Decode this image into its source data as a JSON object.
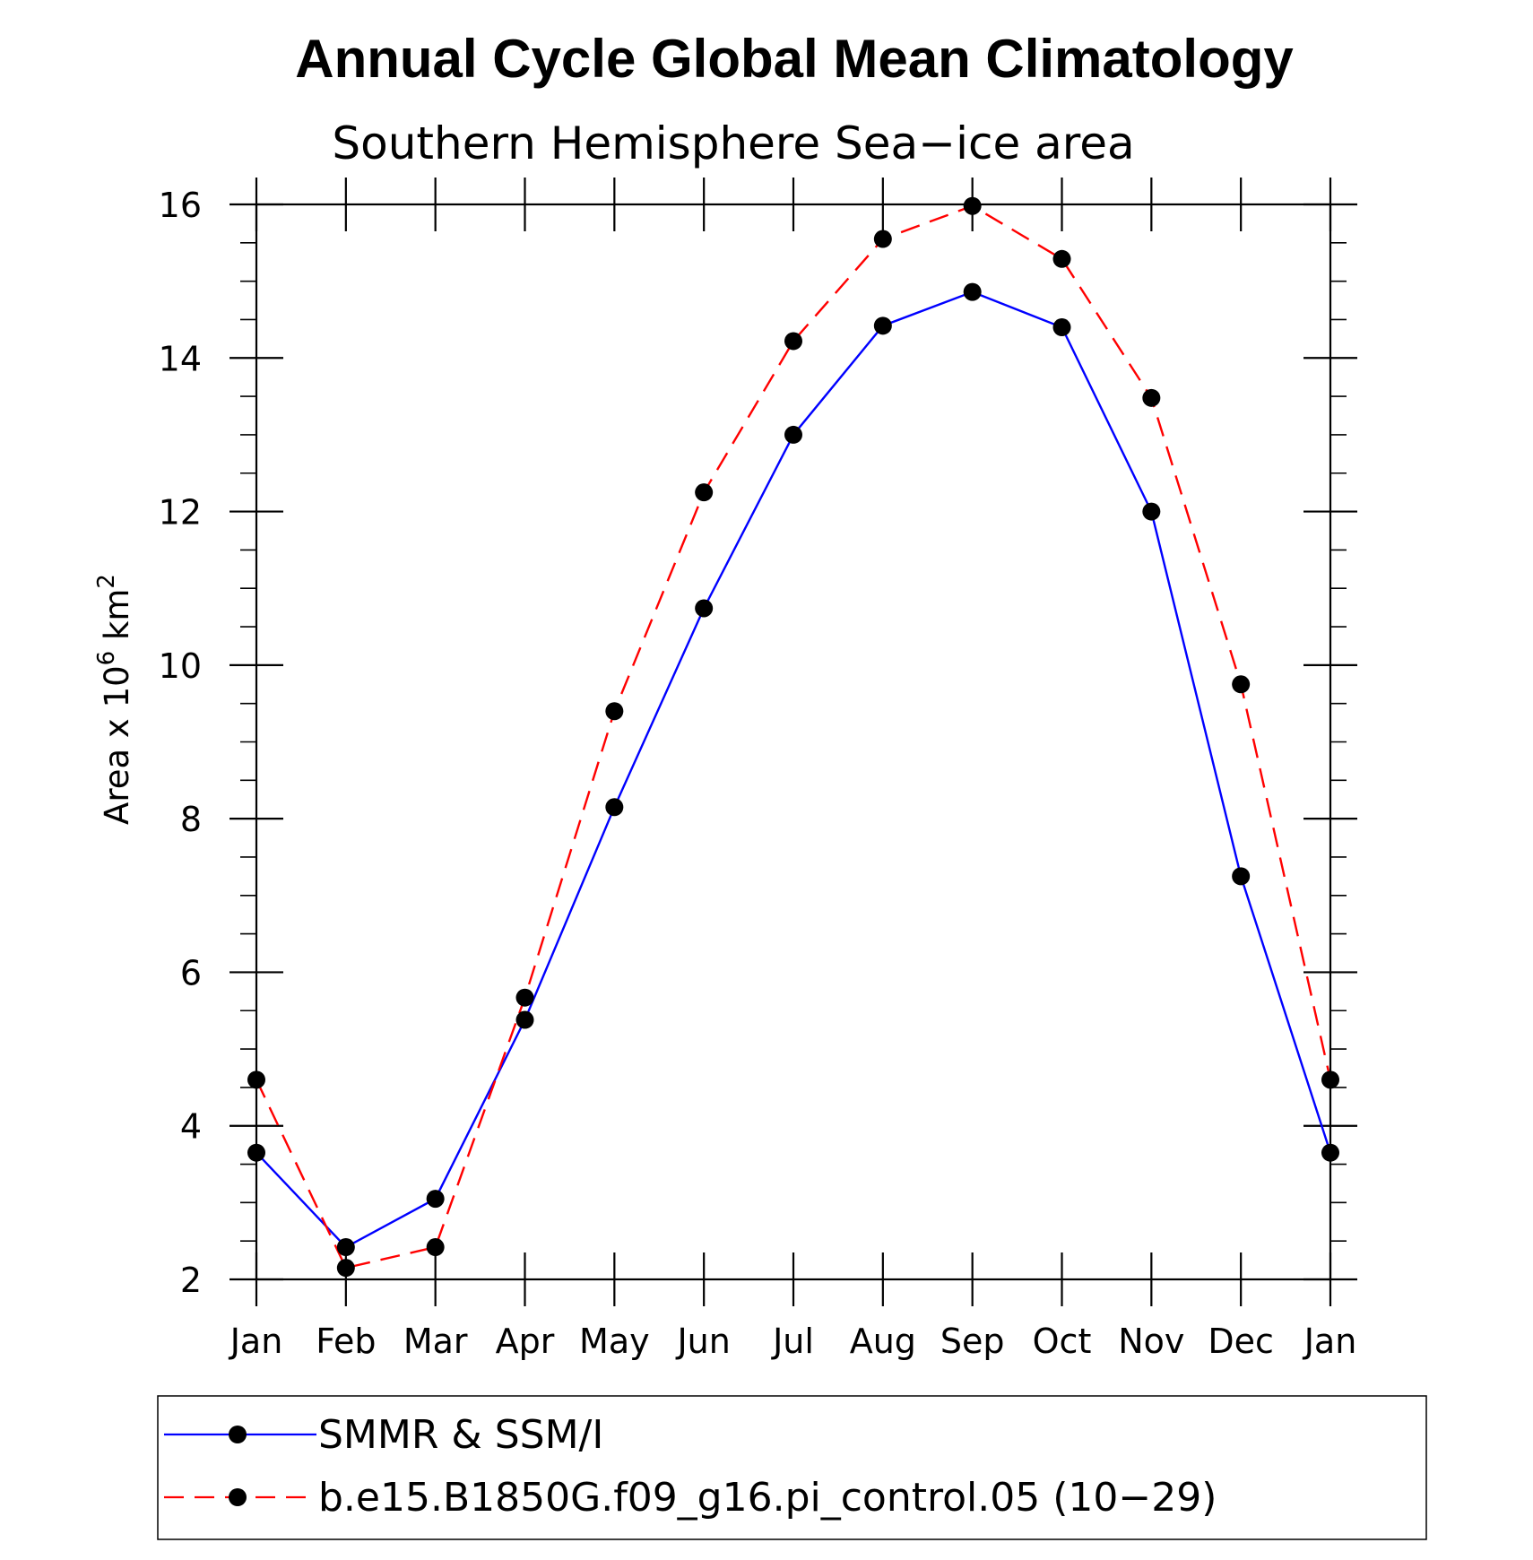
{
  "chart_data": {
    "type": "line",
    "title": "Annual Cycle Global Mean Climatology",
    "subtitle": "Southern Hemisphere Sea−ice area",
    "ylabel": {
      "text": "Area x 10",
      "superscript": "6",
      "unit_text": " km",
      "unit_superscript": "2"
    },
    "xlabel": "",
    "categories": [
      "Jan",
      "Feb",
      "Mar",
      "Apr",
      "May",
      "Jun",
      "Jul",
      "Aug",
      "Sep",
      "Oct",
      "Nov",
      "Dec",
      "Jan"
    ],
    "ylim": [
      2,
      16
    ],
    "yticks": [
      2,
      4,
      6,
      8,
      10,
      12,
      14,
      16
    ],
    "series": [
      {
        "name": "SMMR & SSM/I",
        "color": "#0000ff",
        "dash": "solid",
        "marker": "filled-circle",
        "values": [
          3.65,
          2.42,
          3.05,
          5.38,
          8.15,
          10.74,
          13.0,
          14.42,
          14.86,
          14.4,
          12.0,
          7.25,
          3.65
        ]
      },
      {
        "name": "b.e15.B1850G.f09_g16.pi_control.05 (10−29)",
        "color": "#ff0000",
        "dash": "dashed",
        "marker": "filled-circle",
        "values": [
          4.6,
          2.15,
          2.42,
          5.67,
          9.4,
          12.25,
          14.22,
          15.55,
          15.98,
          15.29,
          13.48,
          9.75,
          4.6
        ]
      }
    ],
    "legend_position": "bottom",
    "grid": false
  }
}
